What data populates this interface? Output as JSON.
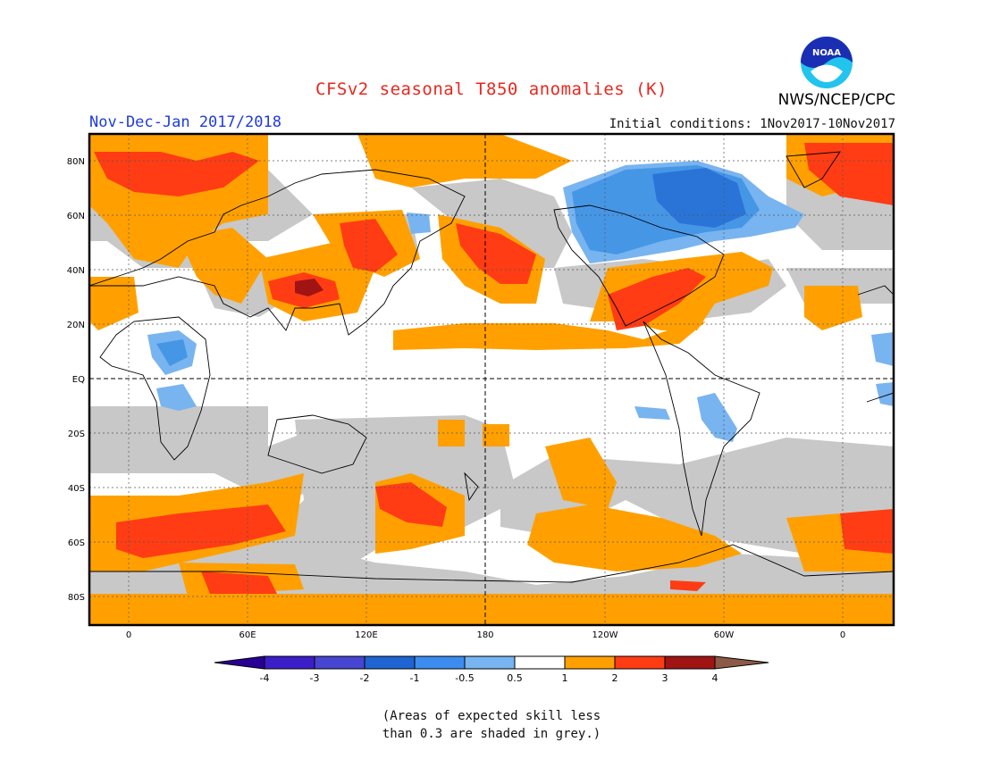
{
  "header": {
    "title": "CFSv2 seasonal T850 anomalies (K)",
    "organization": "NWS/NCEP/CPC",
    "period": "Nov-Dec-Jan 2017/2018",
    "initial_conditions": "Initial conditions: 1Nov2017-10Nov2017",
    "logo_text": "NOAA",
    "logo_icon": "noaa-logo-icon"
  },
  "map": {
    "lat_labels": [
      "80N",
      "60N",
      "40N",
      "20N",
      "EQ",
      "20S",
      "40S",
      "60S",
      "80S"
    ],
    "lon_labels": [
      "0",
      "60E",
      "120E",
      "180",
      "120W",
      "60W",
      "0"
    ],
    "colors": {
      "grey": "#c8c8c8",
      "light_blue": "#78b4f0",
      "mid_blue": "#4696e6",
      "blue": "#2a74d8",
      "orange": "#ffa000",
      "red_orange": "#ff3c14",
      "dark_red": "#a01414",
      "ocean": "#ffffff",
      "coast": "#000000"
    }
  },
  "colorbar": {
    "labels": [
      "-4",
      "-3",
      "-2",
      "-1",
      "-0.5",
      "0.5",
      "1",
      "2",
      "3",
      "4"
    ],
    "colors": [
      "#3c1ec8",
      "#4646d2",
      "#1e64d2",
      "#3c8cf0",
      "#78b4f0",
      "#ffffff",
      "#ffa000",
      "#ff3c14",
      "#a01414",
      "#c8a08c"
    ],
    "end_low": "#280096",
    "end_high": "#8c5a46"
  },
  "note": {
    "line1": "(Areas of expected skill less",
    "line2": "than 0.3 are shaded in grey.)"
  }
}
